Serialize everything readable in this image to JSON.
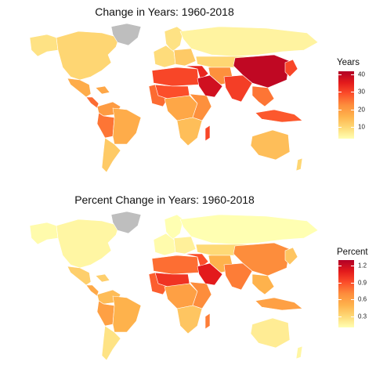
{
  "colors": {
    "scale": [
      "#ffffb2",
      "#fed976",
      "#feb24c",
      "#fd8d3c",
      "#fc4e2a",
      "#e31a1c",
      "#b10026"
    ],
    "missing": "#bebebe",
    "border": "#ffffff"
  },
  "maps": [
    {
      "title": "Change in Years: 1960-2018",
      "legend": {
        "title": "Years",
        "min": 3,
        "max": 42,
        "ticks": [
          {
            "value": 10,
            "label": "10"
          },
          {
            "value": 20,
            "label": "20"
          },
          {
            "value": 30,
            "label": "30"
          },
          {
            "value": 40,
            "label": "40"
          }
        ]
      },
      "regions": {
        "north_america": 10,
        "alaska": 8,
        "greenland": null,
        "mexico": 17,
        "central_america": 26,
        "caribbean": 18,
        "colombia_venezuela": 20,
        "brazil": 17,
        "peru_bolivia": 25,
        "southern_cone": 12,
        "western_europe": 9,
        "scandinavia": 8,
        "eastern_europe": 12,
        "russia": 5,
        "north_africa": 30,
        "west_africa": 26,
        "sahel": 29,
        "central_africa": 18,
        "east_africa": 22,
        "southern_africa": 14,
        "madagascar": 30,
        "middle_east": 34,
        "arabia": 38,
        "iran_central_asia": 22,
        "south_asia": 31,
        "china": 40,
        "mongolia_kazakhstan": 10,
        "southeast_asia": 25,
        "indonesia": 28,
        "japan_korea": 30,
        "australia": 14,
        "new_zealand": 10
      }
    },
    {
      "title": "Percent Change in Years: 1960-2018",
      "legend": {
        "title": "Percent",
        "min": 0.1,
        "max": 1.3,
        "ticks": [
          {
            "value": 0.3,
            "label": "0.3"
          },
          {
            "value": 0.6,
            "label": "0.6"
          },
          {
            "value": 0.9,
            "label": "0.9"
          },
          {
            "value": 1.2,
            "label": "1.2"
          }
        ]
      },
      "regions": {
        "north_america": 0.15,
        "alaska": 0.12,
        "greenland": null,
        "mexico": 0.35,
        "central_america": 0.55,
        "caribbean": 0.35,
        "colombia_venezuela": 0.45,
        "brazil": 0.5,
        "peru_bolivia": 0.6,
        "southern_cone": 0.25,
        "western_europe": 0.12,
        "scandinavia": 0.1,
        "eastern_europe": 0.18,
        "russia": 0.08,
        "north_africa": 0.8,
        "west_africa": 0.85,
        "sahel": 1.0,
        "central_africa": 0.6,
        "east_africa": 0.7,
        "southern_africa": 0.4,
        "madagascar": 0.75,
        "middle_east": 0.9,
        "arabia": 1.1,
        "iran_central_asia": 0.5,
        "south_asia": 0.75,
        "china": 0.7,
        "mongolia_kazakhstan": 0.3,
        "southeast_asia": 0.5,
        "indonesia": 0.6,
        "japan_korea": 0.4,
        "australia": 0.2,
        "new_zealand": 0.15
      }
    }
  ]
}
